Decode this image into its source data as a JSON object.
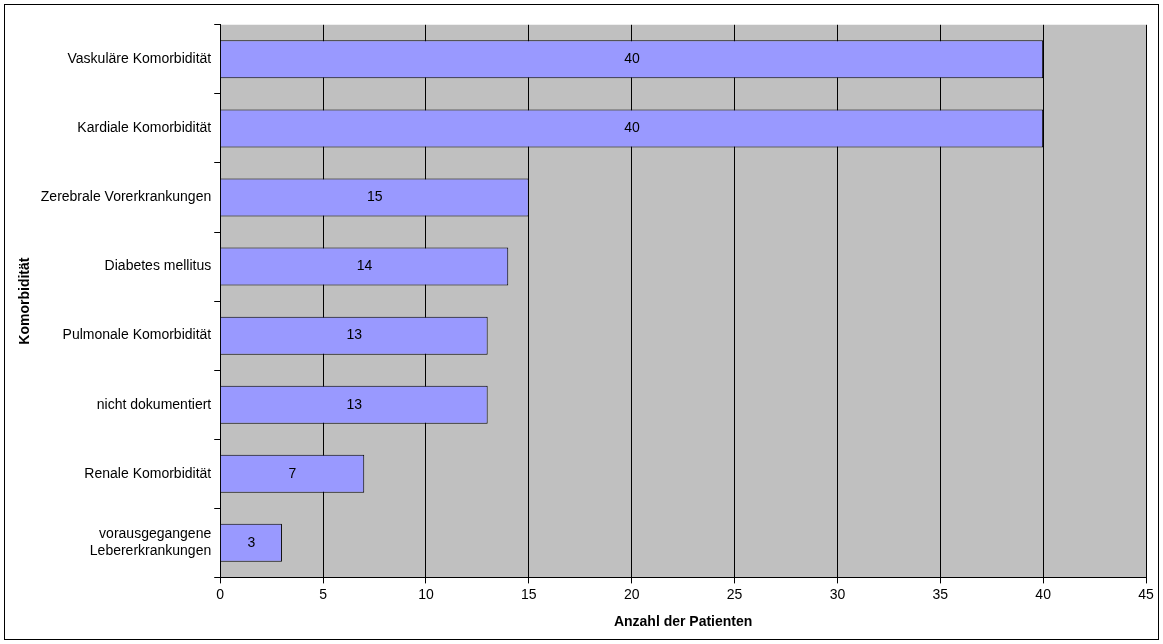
{
  "chart_data": {
    "type": "bar",
    "orientation": "horizontal",
    "xlabel": "Anzahl der Patienten",
    "ylabel": "Komorbidität",
    "categories": [
      "Vaskuläre Komorbidität",
      "Kardiale Komorbidität",
      "Zerebrale Vorerkrankungen",
      "Diabetes mellitus",
      "Pulmonale Komorbidität",
      "nicht dokumentiert",
      "Renale Komorbidität",
      "vorausgegangene Lebererkrankungen"
    ],
    "values": [
      40,
      40,
      15,
      14,
      13,
      13,
      7,
      3
    ],
    "color": "#9999ff",
    "xlim": [
      0,
      45
    ],
    "xticks": [
      0,
      5,
      10,
      15,
      20,
      25,
      30,
      35,
      40,
      45
    ],
    "grid": "x",
    "data_labels": true,
    "legend": false
  }
}
